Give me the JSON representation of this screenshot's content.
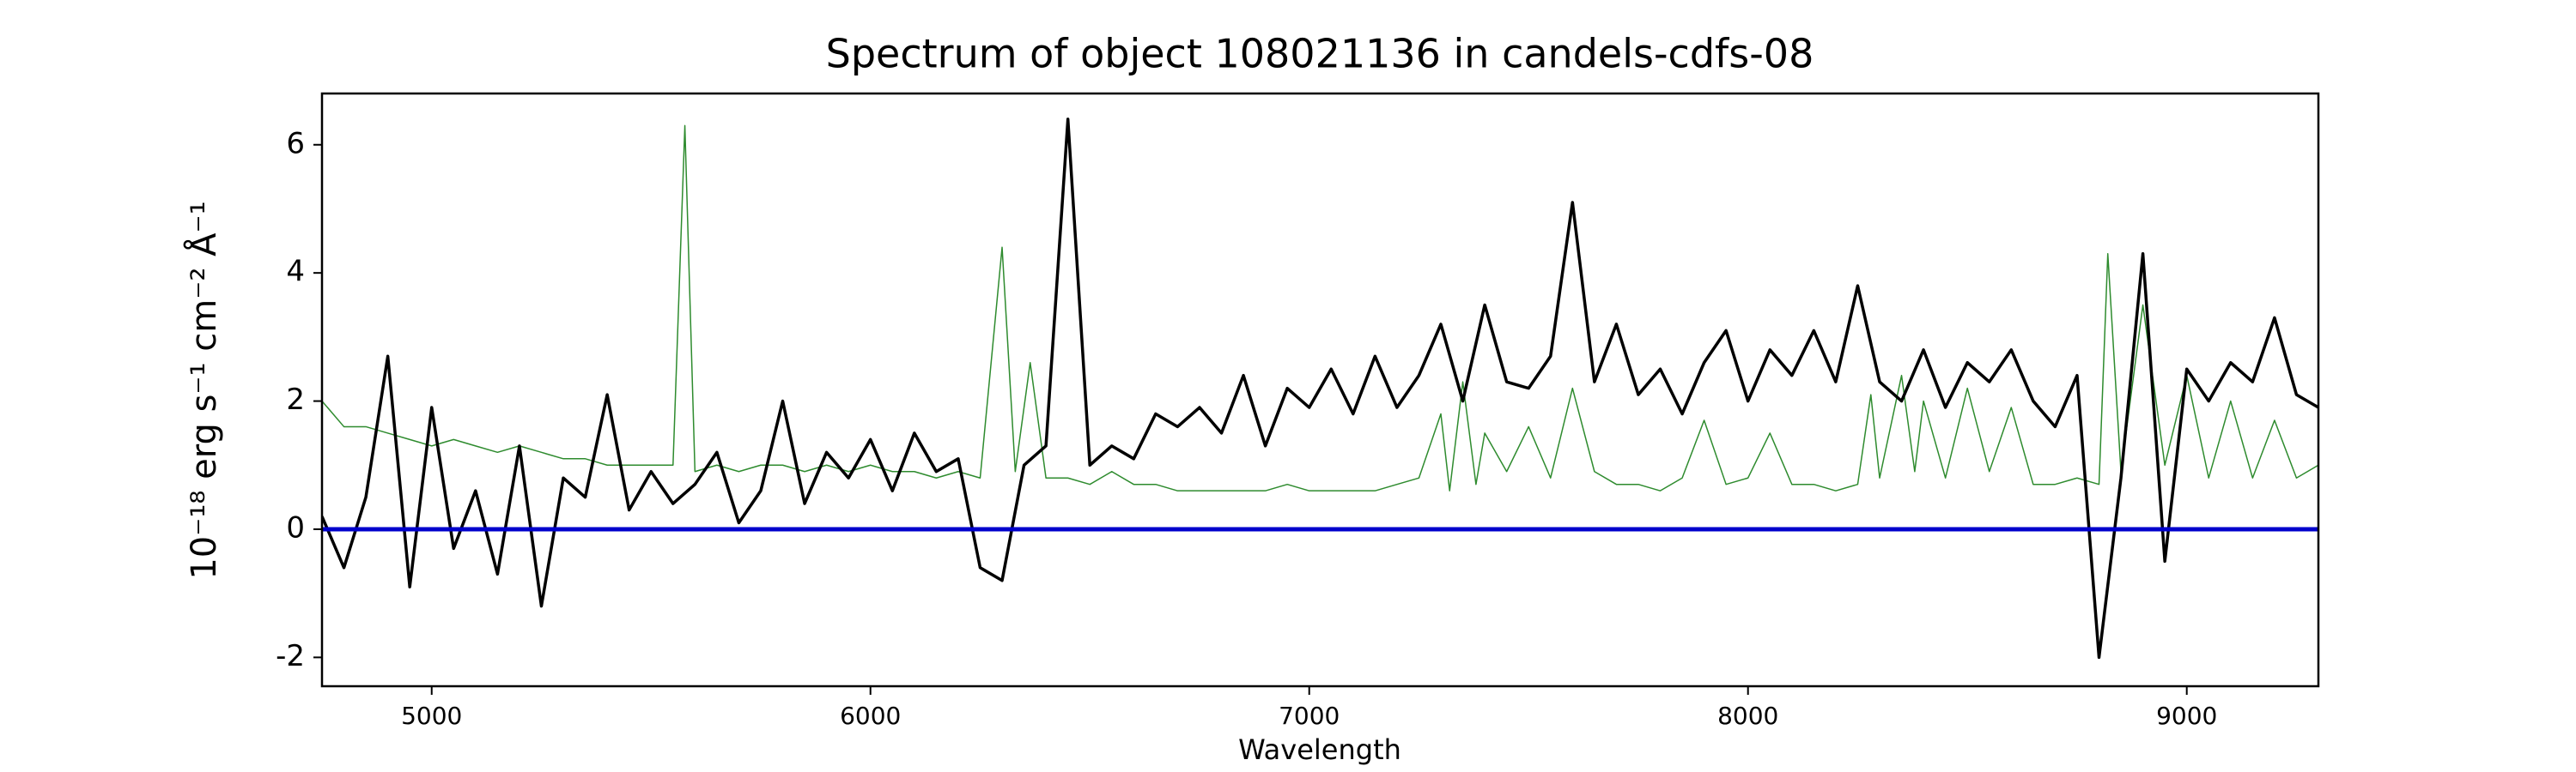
{
  "chart_data": {
    "type": "line",
    "title": "Spectrum of object 108021136 in candels-cdfs-08",
    "xlabel": "Wavelength",
    "ylabel": "10⁻¹⁸ erg s⁻¹ cm⁻² Å⁻¹",
    "xlim": [
      4750,
      9300
    ],
    "ylim": [
      -2.45,
      6.8
    ],
    "xticks": [
      5000,
      6000,
      7000,
      8000,
      9000
    ],
    "yticks": [
      -2,
      0,
      2,
      4,
      6
    ],
    "grid": false,
    "series": [
      {
        "color": "#2e8b2e",
        "x": [
          4750,
          4800,
          4850,
          4900,
          4950,
          5000,
          5050,
          5100,
          5150,
          5200,
          5250,
          5300,
          5350,
          5400,
          5450,
          5500,
          5550,
          5577,
          5600,
          5650,
          5700,
          5750,
          5800,
          5850,
          5900,
          5950,
          6000,
          6050,
          6100,
          6150,
          6200,
          6250,
          6300,
          6330,
          6364,
          6400,
          6450,
          6500,
          6550,
          6600,
          6650,
          6700,
          6750,
          6800,
          6850,
          6900,
          6950,
          7000,
          7050,
          7100,
          7150,
          7200,
          7250,
          7300,
          7320,
          7350,
          7380,
          7400,
          7450,
          7500,
          7550,
          7600,
          7650,
          7700,
          7750,
          7800,
          7850,
          7900,
          7950,
          8000,
          8050,
          8100,
          8150,
          8200,
          8250,
          8280,
          8300,
          8350,
          8380,
          8400,
          8450,
          8500,
          8550,
          8600,
          8650,
          8700,
          8750,
          8800,
          8820,
          8850,
          8900,
          8950,
          9000,
          9050,
          9100,
          9150,
          9200,
          9250,
          9300
        ],
        "values": [
          2.0,
          1.6,
          1.6,
          1.5,
          1.4,
          1.3,
          1.4,
          1.3,
          1.2,
          1.3,
          1.2,
          1.1,
          1.1,
          1.0,
          1.0,
          1.0,
          1.0,
          6.3,
          0.9,
          1.0,
          0.9,
          1.0,
          1.0,
          0.9,
          1.0,
          0.9,
          1.0,
          0.9,
          0.9,
          0.8,
          0.9,
          0.8,
          4.4,
          0.9,
          2.6,
          0.8,
          0.8,
          0.7,
          0.9,
          0.7,
          0.7,
          0.6,
          0.6,
          0.6,
          0.6,
          0.6,
          0.7,
          0.6,
          0.6,
          0.6,
          0.6,
          0.7,
          0.8,
          1.8,
          0.6,
          2.3,
          0.7,
          1.5,
          0.9,
          1.6,
          0.8,
          2.2,
          0.9,
          0.7,
          0.7,
          0.6,
          0.8,
          1.7,
          0.7,
          0.8,
          1.5,
          0.7,
          0.7,
          0.6,
          0.7,
          2.1,
          0.8,
          2.4,
          0.9,
          2.0,
          0.8,
          2.2,
          0.9,
          1.9,
          0.7,
          0.7,
          0.8,
          0.7,
          4.3,
          0.9,
          3.5,
          1.0,
          2.4,
          0.8,
          2.0,
          0.8,
          1.7,
          0.8,
          1.0
        ],
        "width": 1.5
      },
      {
        "color": "#000000",
        "x": [
          4750,
          4800,
          4850,
          4900,
          4950,
          5000,
          5050,
          5100,
          5150,
          5200,
          5250,
          5300,
          5350,
          5400,
          5450,
          5500,
          5550,
          5600,
          5650,
          5700,
          5750,
          5800,
          5850,
          5900,
          5950,
          6000,
          6050,
          6100,
          6150,
          6200,
          6250,
          6300,
          6350,
          6400,
          6450,
          6500,
          6550,
          6600,
          6650,
          6700,
          6750,
          6800,
          6850,
          6900,
          6950,
          7000,
          7050,
          7100,
          7150,
          7200,
          7250,
          7300,
          7350,
          7400,
          7450,
          7500,
          7550,
          7600,
          7650,
          7700,
          7750,
          7800,
          7850,
          7900,
          7950,
          8000,
          8050,
          8100,
          8150,
          8200,
          8250,
          8300,
          8350,
          8400,
          8450,
          8500,
          8550,
          8600,
          8650,
          8700,
          8750,
          8800,
          8850,
          8900,
          8950,
          9000,
          9050,
          9100,
          9150,
          9200,
          9250,
          9300
        ],
        "values": [
          0.2,
          -0.6,
          0.5,
          2.7,
          -0.9,
          1.9,
          -0.3,
          0.6,
          -0.7,
          1.3,
          -1.2,
          0.8,
          0.5,
          2.1,
          0.3,
          0.9,
          0.4,
          0.7,
          1.2,
          0.1,
          0.6,
          2.0,
          0.4,
          1.2,
          0.8,
          1.4,
          0.6,
          1.5,
          0.9,
          1.1,
          -0.6,
          -0.8,
          1.0,
          1.3,
          6.4,
          1.0,
          1.3,
          1.1,
          1.8,
          1.6,
          1.9,
          1.5,
          2.4,
          1.3,
          2.2,
          1.9,
          2.5,
          1.8,
          2.7,
          1.9,
          2.4,
          3.2,
          2.0,
          3.5,
          2.3,
          2.2,
          2.7,
          5.1,
          2.3,
          3.2,
          2.1,
          2.5,
          1.8,
          2.6,
          3.1,
          2.0,
          2.8,
          2.4,
          3.1,
          2.3,
          3.8,
          2.3,
          2.0,
          2.8,
          1.9,
          2.6,
          2.3,
          2.8,
          2.0,
          1.6,
          2.4,
          -2.0,
          0.8,
          4.3,
          -0.5,
          2.5,
          2.0,
          2.6,
          2.3,
          3.3,
          2.1,
          1.9
        ],
        "width": 3.5
      },
      {
        "color": "#0000cc",
        "x": [
          4750,
          9300
        ],
        "values": [
          0,
          0
        ],
        "width": 5
      }
    ]
  }
}
